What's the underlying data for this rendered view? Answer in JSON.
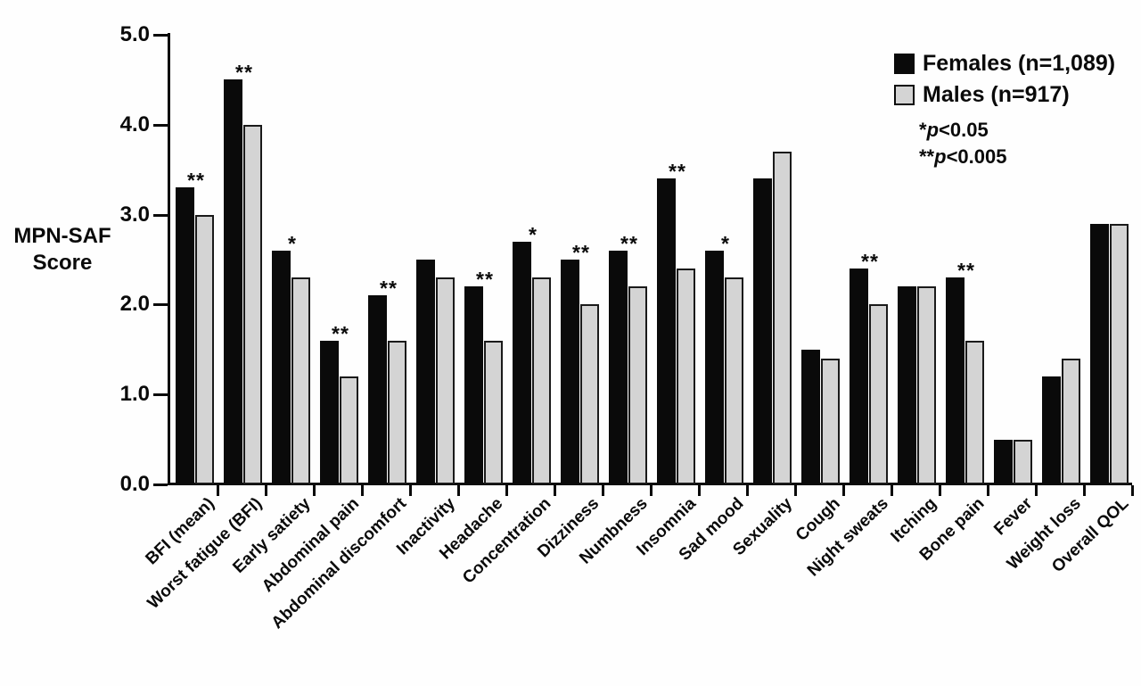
{
  "figure": {
    "ylabel_line1": "MPN-SAF",
    "ylabel_line2": "Score",
    "notes": [
      {
        "stars": "*",
        "p": "p",
        "rest": "<0.05"
      },
      {
        "stars": "**",
        "p": "p",
        "rest": "<0.005"
      }
    ]
  },
  "chart_data": {
    "type": "bar",
    "title": "",
    "xlabel": "",
    "ylabel": "MPN-SAF Score",
    "ylim": [
      0,
      5
    ],
    "ytick_labels": [
      "0.0",
      "1.0",
      "2.0",
      "3.0",
      "4.0",
      "5.0"
    ],
    "grid": false,
    "legend_position": "top-right",
    "categories": [
      "BFI (mean)",
      "Worst fatigue (BFI)",
      "Early satiety",
      "Abdominal pain",
      "Abdominal discomfort",
      "Inactivity",
      "Headache",
      "Concentration",
      "Dizziness",
      "Numbness",
      "Insomnia",
      "Sad mood",
      "Sexuality",
      "Cough",
      "Night sweats",
      "Itching",
      "Bone pain",
      "Fever",
      "Weight loss",
      "Overall QOL"
    ],
    "series": [
      {
        "name": "Females (n=1,089)",
        "color": "#0a0a0a",
        "values": [
          3.3,
          4.5,
          2.6,
          1.6,
          2.1,
          2.5,
          2.2,
          2.7,
          2.5,
          2.6,
          3.4,
          2.6,
          3.4,
          1.5,
          2.4,
          2.2,
          2.3,
          0.5,
          1.2,
          2.9
        ]
      },
      {
        "name": "Males (n=917)",
        "color": "#d4d4d4",
        "values": [
          3.0,
          4.0,
          2.3,
          1.2,
          1.6,
          2.3,
          1.6,
          2.3,
          2.0,
          2.2,
          2.4,
          2.3,
          3.7,
          1.4,
          2.0,
          2.2,
          1.6,
          0.5,
          1.4,
          2.9
        ]
      }
    ],
    "significance_note_1": "*p<0.05",
    "significance_note_2": "**p<0.005",
    "significance": [
      "**",
      "**",
      "*",
      "**",
      "**",
      "",
      "**",
      "*",
      "**",
      "**",
      "**",
      "*",
      "",
      "",
      "**",
      "",
      "**",
      "",
      "",
      ""
    ]
  }
}
